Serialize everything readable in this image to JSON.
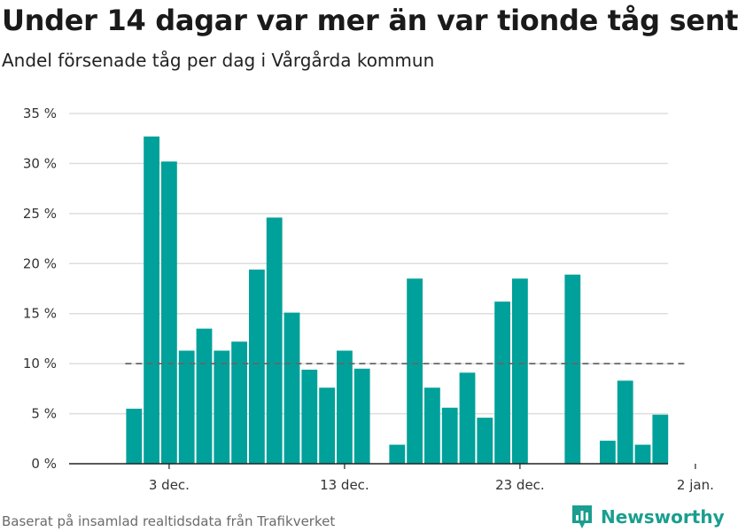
{
  "header": {
    "title": "Under 14 dagar var mer än var tionde tåg sent",
    "subtitle": "Andel försenade tåg per dag i Vårgårda kommun"
  },
  "footer": {
    "source": "Baserat på insamlad realtidsdata från Trafikverket",
    "brand": "Newsworthy",
    "brand_icon": "bar-chart-logo-icon"
  },
  "colors": {
    "bar": "#00a19a",
    "reference_line": "#666666",
    "grid": "#dddddd",
    "brand": "#1a9e8f"
  },
  "chart_data": {
    "type": "bar",
    "title": "Under 14 dagar var mer än var tionde tåg sent",
    "subtitle": "Andel försenade tåg per dag i Vårgårda kommun",
    "xlabel": "",
    "ylabel": "",
    "unit": "%",
    "ylim": [
      0,
      35
    ],
    "yticks": [
      0,
      5,
      10,
      15,
      20,
      25,
      30,
      35
    ],
    "ytick_labels": [
      "0 %",
      "5 %",
      "10 %",
      "15 %",
      "20 %",
      "25 %",
      "30 %",
      "35 %"
    ],
    "xticks": [
      {
        "date": "2019-12-03",
        "label": "3 dec."
      },
      {
        "date": "2019-12-13",
        "label": "13 dec."
      },
      {
        "date": "2019-12-23",
        "label": "23 dec."
      },
      {
        "date": "2020-01-02",
        "label": "2 jan."
      }
    ],
    "xlim": [
      "2019-11-28",
      "2020-01-01"
    ],
    "grid": true,
    "reference_line": {
      "y": 10,
      "from": "2019-12-01",
      "to": "2020-01-01",
      "style": "dashed"
    },
    "categories": [
      "2019-12-01",
      "2019-12-02",
      "2019-12-03",
      "2019-12-04",
      "2019-12-05",
      "2019-12-06",
      "2019-12-07",
      "2019-12-08",
      "2019-12-09",
      "2019-12-10",
      "2019-12-11",
      "2019-12-12",
      "2019-12-13",
      "2019-12-14",
      "2019-12-15",
      "2019-12-16",
      "2019-12-17",
      "2019-12-18",
      "2019-12-19",
      "2019-12-20",
      "2019-12-21",
      "2019-12-22",
      "2019-12-23",
      "2019-12-24",
      "2019-12-25",
      "2019-12-26",
      "2019-12-27",
      "2019-12-28",
      "2019-12-29",
      "2019-12-30",
      "2019-12-31"
    ],
    "values": [
      5.5,
      32.7,
      30.2,
      11.3,
      13.5,
      11.3,
      12.2,
      19.4,
      24.6,
      15.1,
      9.4,
      7.6,
      11.3,
      9.5,
      null,
      1.9,
      18.5,
      7.6,
      5.6,
      9.1,
      4.6,
      16.2,
      18.5,
      null,
      null,
      18.9,
      null,
      2.3,
      8.3,
      1.9,
      4.9
    ]
  }
}
